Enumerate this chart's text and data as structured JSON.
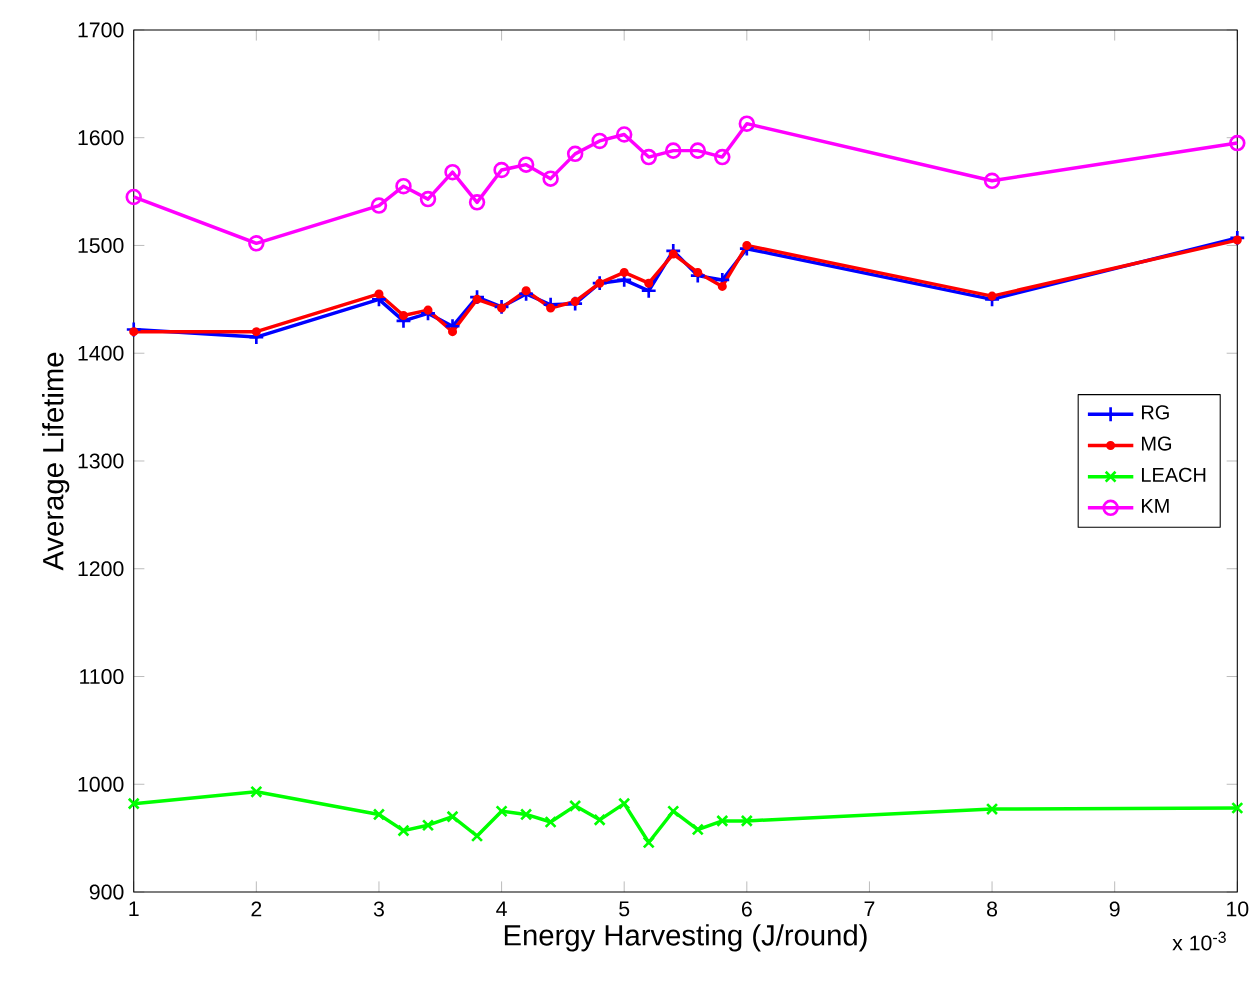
{
  "chart_data": {
    "type": "line",
    "xlabel": "Energy Harvesting (J/round)",
    "ylabel": "Average Lifetime",
    "x": [
      1,
      2,
      3,
      3.2,
      3.4,
      3.6,
      3.8,
      4,
      4.2,
      4.4,
      4.6,
      4.8,
      5,
      5.2,
      5.4,
      5.6,
      5.8,
      6,
      8,
      10
    ],
    "series": [
      {
        "name": "RG",
        "color": "#0000ff",
        "marker": "plus",
        "values": [
          1422,
          1415,
          1450,
          1430,
          1437,
          1425,
          1452,
          1443,
          1455,
          1445,
          1446,
          1465,
          1468,
          1458,
          1495,
          1472,
          1468,
          1497,
          1450,
          1507
        ]
      },
      {
        "name": "MG",
        "color": "#ff0000",
        "marker": "point",
        "values": [
          1420,
          1420,
          1455,
          1435,
          1440,
          1420,
          1450,
          1442,
          1458,
          1442,
          1448,
          1465,
          1475,
          1465,
          1492,
          1475,
          1462,
          1500,
          1453,
          1505
        ]
      },
      {
        "name": "LEACH",
        "color": "#00ff00",
        "marker": "cross",
        "values": [
          982,
          993,
          972,
          957,
          962,
          970,
          952,
          975,
          972,
          965,
          980,
          967,
          982,
          946,
          975,
          958,
          966,
          966,
          977,
          978
        ]
      },
      {
        "name": "KM",
        "color": "#ff00ff",
        "marker": "circle",
        "values": [
          1545,
          1502,
          1537,
          1555,
          1543,
          1568,
          1540,
          1570,
          1575,
          1562,
          1585,
          1597,
          1603,
          1582,
          1588,
          1588,
          1582,
          1613,
          1560,
          1595
        ]
      }
    ],
    "xlim": [
      1,
      10
    ],
    "xticks": [
      1,
      2,
      3,
      4,
      5,
      6,
      7,
      8,
      9,
      10
    ],
    "ylim": [
      900,
      1700
    ],
    "yticks": [
      900,
      1000,
      1100,
      1200,
      1300,
      1400,
      1500,
      1600,
      1700
    ],
    "annotations": [
      "x 10$^{-3}$"
    ],
    "legend": "right",
    "grid": false,
    "line_style": "solid"
  }
}
